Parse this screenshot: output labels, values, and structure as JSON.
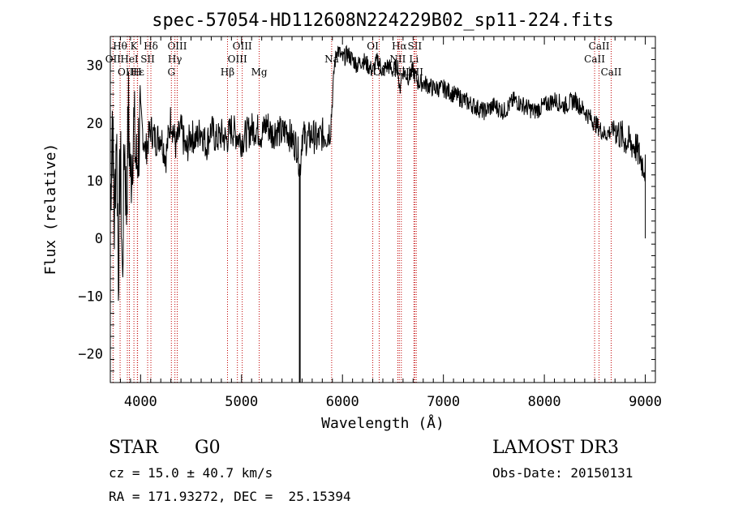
{
  "chart_data": {
    "type": "line",
    "title": "spec-57054-HD112608N224229B02_sp11-224.fits",
    "xlabel": "Wavelength (Å)",
    "ylabel": "Flux (relative)",
    "xlim": [
      3700,
      9100
    ],
    "ylim": [
      -25,
      35
    ],
    "xticks": [
      4000,
      5000,
      6000,
      7000,
      8000,
      9000
    ],
    "yticks": [
      -20,
      -10,
      0,
      10,
      20,
      30
    ],
    "grid": false,
    "series": [
      {
        "color": "#000000",
        "x": [
          3700,
          3720,
          3740,
          3760,
          3780,
          3800,
          3820,
          3840,
          3860,
          3880,
          3900,
          3930,
          3960,
          4000,
          4050,
          4100,
          4150,
          4200,
          4250,
          4300,
          4350,
          4400,
          4450,
          4500,
          4550,
          4600,
          4650,
          4700,
          4750,
          4800,
          4850,
          4900,
          4950,
          5000,
          5050,
          5100,
          5150,
          5200,
          5250,
          5300,
          5350,
          5400,
          5450,
          5500,
          5550,
          5580,
          5600,
          5650,
          5700,
          5750,
          5800,
          5850,
          5880,
          5900,
          5920,
          5950,
          6000,
          6050,
          6100,
          6150,
          6200,
          6250,
          6300,
          6350,
          6400,
          6450,
          6500,
          6550,
          6565,
          6580,
          6600,
          6650,
          6700,
          6750,
          6800,
          6900,
          7000,
          7100,
          7200,
          7300,
          7400,
          7500,
          7600,
          7700,
          7800,
          7900,
          8000,
          8100,
          8200,
          8300,
          8400,
          8500,
          8600,
          8700,
          8800,
          8900,
          8950,
          9000
        ],
        "y": [
          5,
          22,
          2,
          20,
          -5,
          15,
          -8,
          18,
          5,
          22,
          10,
          20,
          12,
          21,
          15,
          19,
          17,
          18,
          14,
          21,
          16,
          19,
          15,
          18,
          17,
          19,
          16,
          19,
          17,
          18,
          17,
          19,
          18,
          17,
          18,
          19,
          19,
          18,
          20,
          18,
          19,
          18,
          19,
          17,
          16,
          12,
          18,
          17,
          18,
          17,
          18,
          18,
          19,
          24,
          30,
          33,
          31,
          32,
          31,
          30,
          31,
          30,
          29,
          31,
          29,
          30,
          29,
          30,
          25,
          28,
          29,
          28,
          29,
          27,
          27,
          26,
          26,
          25,
          24,
          23,
          22,
          23,
          22,
          24,
          23,
          22,
          23,
          24,
          23,
          24,
          22,
          20,
          18,
          19,
          17,
          16,
          14,
          12
        ]
      }
    ],
    "spectral_lines": [
      {
        "label": "Hθ",
        "wavelength": 3797,
        "row": 0
      },
      {
        "label": "OII",
        "wavelength": 3727,
        "row": 1
      },
      {
        "label": "OIII",
        "wavelength": 3869,
        "row": 2
      },
      {
        "label": "K",
        "wavelength": 3934,
        "row": 0
      },
      {
        "label": "HeI",
        "wavelength": 3889,
        "row": 1
      },
      {
        "label": "Hε",
        "wavelength": 3970,
        "row": 2
      },
      {
        "label": "SII",
        "wavelength": 4070,
        "row": 1
      },
      {
        "label": "Hδ",
        "wavelength": 4102,
        "row": 0
      },
      {
        "label": "H",
        "wavelength": 3968,
        "row": 2
      },
      {
        "label": "OIII",
        "wavelength": 4363,
        "row": 0
      },
      {
        "label": "Hγ",
        "wavelength": 4340,
        "row": 1
      },
      {
        "label": "G",
        "wavelength": 4305,
        "row": 2
      },
      {
        "label": "Hβ",
        "wavelength": 4861,
        "row": 2
      },
      {
        "label": "OIII",
        "wavelength": 5007,
        "row": 0
      },
      {
        "label": "OIII",
        "wavelength": 4959,
        "row": 1
      },
      {
        "label": "Mg",
        "wavelength": 5175,
        "row": 2
      },
      {
        "label": "Na",
        "wavelength": 5893,
        "row": 1
      },
      {
        "label": "OI",
        "wavelength": 6300,
        "row": 0
      },
      {
        "label": "OI",
        "wavelength": 6364,
        "row": 2
      },
      {
        "label": "Hα",
        "wavelength": 6563,
        "row": 0
      },
      {
        "label": "SII",
        "wavelength": 6716,
        "row": 0
      },
      {
        "label": "NII",
        "wavelength": 6548,
        "row": 1
      },
      {
        "label": "Li",
        "wavelength": 6708,
        "row": 1
      },
      {
        "label": "NII",
        "wavelength": 6583,
        "row": 2
      },
      {
        "label": "SII",
        "wavelength": 6731,
        "row": 2
      },
      {
        "label": "CaII",
        "wavelength": 8542,
        "row": 0
      },
      {
        "label": "CaII",
        "wavelength": 8498,
        "row": 1
      },
      {
        "label": "CaII",
        "wavelength": 8662,
        "row": 2
      }
    ]
  },
  "info": {
    "object_type": "STAR",
    "subclass": "G0",
    "survey": "LAMOST DR3",
    "cz": "cz = 15.0 ± 40.7 km/s",
    "obs_date": "Obs-Date: 20150131",
    "radec": "RA = 171.93272, DEC =  25.15394"
  }
}
